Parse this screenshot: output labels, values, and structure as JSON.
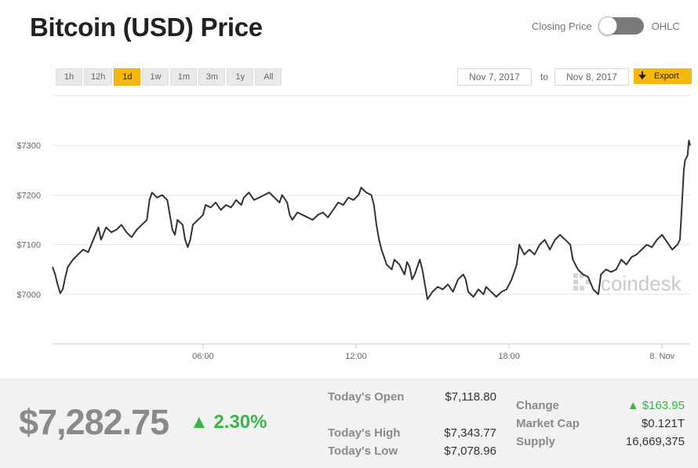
{
  "header": {
    "title": "Bitcoin (USD) Price"
  },
  "toggle": {
    "left_label": "Closing Price",
    "right_label": "OHLC"
  },
  "ranges": [
    "1h",
    "12h",
    "1d",
    "1w",
    "1m",
    "3m",
    "1y",
    "All"
  ],
  "active_range": "1d",
  "date_range": {
    "from": "Nov 7, 2017",
    "separator": "to",
    "to": "Nov 8, 2017"
  },
  "export": {
    "label": "Export",
    "icon": "download-arrow-icon"
  },
  "watermark": "coindesk",
  "colors": {
    "accent": "#f6b70e",
    "up": "#3ab34a",
    "line": "#333333"
  },
  "summary": {
    "price": "$7,282.75",
    "change_pct": "2.30%",
    "open_label": "Today's Open",
    "open_value": "$7,118.80",
    "high_label": "Today's High",
    "high_value": "$7,343.77",
    "low_label": "Today's Low",
    "low_value": "$7,078.96",
    "change_label": "Change",
    "change_value": "$163.95",
    "mcap_label": "Market Cap",
    "mcap_value": "$0.121T",
    "supply_label": "Supply",
    "supply_value": "16,669,375"
  },
  "chart_data": {
    "type": "line",
    "title": "",
    "xlabel": "",
    "ylabel": "",
    "x_ticks": [
      {
        "t": 5,
        "label": "06:00"
      },
      {
        "t": 11,
        "label": "12:00"
      },
      {
        "t": 17,
        "label": "18:00"
      },
      {
        "t": 23,
        "label": "8. Nov"
      }
    ],
    "y_ticks": [
      {
        "v": 7000,
        "label": "$7000"
      },
      {
        "v": 7100,
        "label": "$7100"
      },
      {
        "v": 7200,
        "label": "$7200"
      },
      {
        "v": 7300,
        "label": "$7300"
      }
    ],
    "xlim": [
      -0.9,
      24.1
    ],
    "ylim": [
      6900,
      7400
    ],
    "grid": true,
    "series": [
      {
        "values": [
          [
            -0.9,
            7055
          ],
          [
            -0.8,
            7040
          ],
          [
            -0.7,
            7020
          ],
          [
            -0.6,
            7002
          ],
          [
            -0.5,
            7010
          ],
          [
            -0.4,
            7035
          ],
          [
            -0.3,
            7055
          ],
          [
            -0.1,
            7070
          ],
          [
            0.1,
            7080
          ],
          [
            0.3,
            7090
          ],
          [
            0.5,
            7085
          ],
          [
            0.7,
            7110
          ],
          [
            0.9,
            7135
          ],
          [
            1.0,
            7110
          ],
          [
            1.2,
            7135
          ],
          [
            1.4,
            7125
          ],
          [
            1.6,
            7130
          ],
          [
            1.8,
            7140
          ],
          [
            2.0,
            7125
          ],
          [
            2.2,
            7115
          ],
          [
            2.4,
            7130
          ],
          [
            2.6,
            7140
          ],
          [
            2.8,
            7150
          ],
          [
            2.9,
            7190
          ],
          [
            3.0,
            7205
          ],
          [
            3.2,
            7195
          ],
          [
            3.4,
            7200
          ],
          [
            3.6,
            7190
          ],
          [
            3.7,
            7160
          ],
          [
            3.8,
            7130
          ],
          [
            3.9,
            7120
          ],
          [
            4.0,
            7150
          ],
          [
            4.2,
            7140
          ],
          [
            4.3,
            7110
          ],
          [
            4.4,
            7095
          ],
          [
            4.5,
            7110
          ],
          [
            4.6,
            7140
          ],
          [
            4.8,
            7150
          ],
          [
            5.0,
            7160
          ],
          [
            5.1,
            7180
          ],
          [
            5.3,
            7175
          ],
          [
            5.5,
            7185
          ],
          [
            5.7,
            7170
          ],
          [
            5.9,
            7180
          ],
          [
            6.1,
            7175
          ],
          [
            6.3,
            7190
          ],
          [
            6.5,
            7180
          ],
          [
            6.6,
            7195
          ],
          [
            6.8,
            7205
          ],
          [
            7.0,
            7190
          ],
          [
            7.2,
            7195
          ],
          [
            7.4,
            7200
          ],
          [
            7.6,
            7205
          ],
          [
            7.8,
            7195
          ],
          [
            8.0,
            7185
          ],
          [
            8.1,
            7200
          ],
          [
            8.3,
            7185
          ],
          [
            8.4,
            7160
          ],
          [
            8.5,
            7150
          ],
          [
            8.7,
            7165
          ],
          [
            8.9,
            7160
          ],
          [
            9.1,
            7155
          ],
          [
            9.3,
            7150
          ],
          [
            9.5,
            7160
          ],
          [
            9.7,
            7165
          ],
          [
            9.9,
            7155
          ],
          [
            10.1,
            7170
          ],
          [
            10.3,
            7185
          ],
          [
            10.5,
            7180
          ],
          [
            10.7,
            7195
          ],
          [
            10.9,
            7190
          ],
          [
            11.1,
            7200
          ],
          [
            11.2,
            7215
          ],
          [
            11.4,
            7205
          ],
          [
            11.6,
            7200
          ],
          [
            11.7,
            7180
          ],
          [
            11.8,
            7140
          ],
          [
            11.9,
            7110
          ],
          [
            12.0,
            7090
          ],
          [
            12.2,
            7060
          ],
          [
            12.4,
            7050
          ],
          [
            12.5,
            7070
          ],
          [
            12.7,
            7060
          ],
          [
            12.9,
            7040
          ],
          [
            13.0,
            7065
          ],
          [
            13.1,
            7055
          ],
          [
            13.2,
            7030
          ],
          [
            13.3,
            7040
          ],
          [
            13.5,
            7070
          ],
          [
            13.6,
            7050
          ],
          [
            13.7,
            7020
          ],
          [
            13.8,
            6990
          ],
          [
            14.0,
            7005
          ],
          [
            14.2,
            7015
          ],
          [
            14.4,
            7010
          ],
          [
            14.6,
            7020
          ],
          [
            14.8,
            7005
          ],
          [
            15.0,
            7030
          ],
          [
            15.2,
            7040
          ],
          [
            15.3,
            7030
          ],
          [
            15.4,
            7005
          ],
          [
            15.6,
            6995
          ],
          [
            15.8,
            7010
          ],
          [
            16.0,
            7000
          ],
          [
            16.1,
            7015
          ],
          [
            16.3,
            7005
          ],
          [
            16.5,
            6995
          ],
          [
            16.7,
            7005
          ],
          [
            16.9,
            7010
          ],
          [
            17.1,
            7030
          ],
          [
            17.3,
            7060
          ],
          [
            17.4,
            7100
          ],
          [
            17.6,
            7080
          ],
          [
            17.8,
            7090
          ],
          [
            18.0,
            7080
          ],
          [
            18.2,
            7100
          ],
          [
            18.4,
            7110
          ],
          [
            18.6,
            7090
          ],
          [
            18.8,
            7110
          ],
          [
            19.0,
            7120
          ],
          [
            19.2,
            7110
          ],
          [
            19.4,
            7100
          ],
          [
            19.5,
            7070
          ],
          [
            19.7,
            7050
          ],
          [
            19.9,
            7040
          ],
          [
            20.1,
            7035
          ],
          [
            20.3,
            7010
          ],
          [
            20.5,
            7000
          ],
          [
            20.6,
            7040
          ],
          [
            20.8,
            7050
          ],
          [
            21.0,
            7045
          ],
          [
            21.2,
            7050
          ],
          [
            21.4,
            7070
          ],
          [
            21.6,
            7060
          ],
          [
            21.8,
            7075
          ],
          [
            22.0,
            7080
          ],
          [
            22.2,
            7090
          ],
          [
            22.4,
            7100
          ],
          [
            22.6,
            7095
          ],
          [
            22.8,
            7110
          ],
          [
            23.0,
            7120
          ],
          [
            23.2,
            7105
          ],
          [
            23.4,
            7090
          ],
          [
            23.6,
            7100
          ],
          [
            23.7,
            7110
          ],
          [
            23.8,
            7200
          ],
          [
            23.85,
            7250
          ],
          [
            23.9,
            7270
          ],
          [
            24.0,
            7280
          ],
          [
            24.05,
            7310
          ],
          [
            24.1,
            7300
          ]
        ]
      }
    ]
  }
}
